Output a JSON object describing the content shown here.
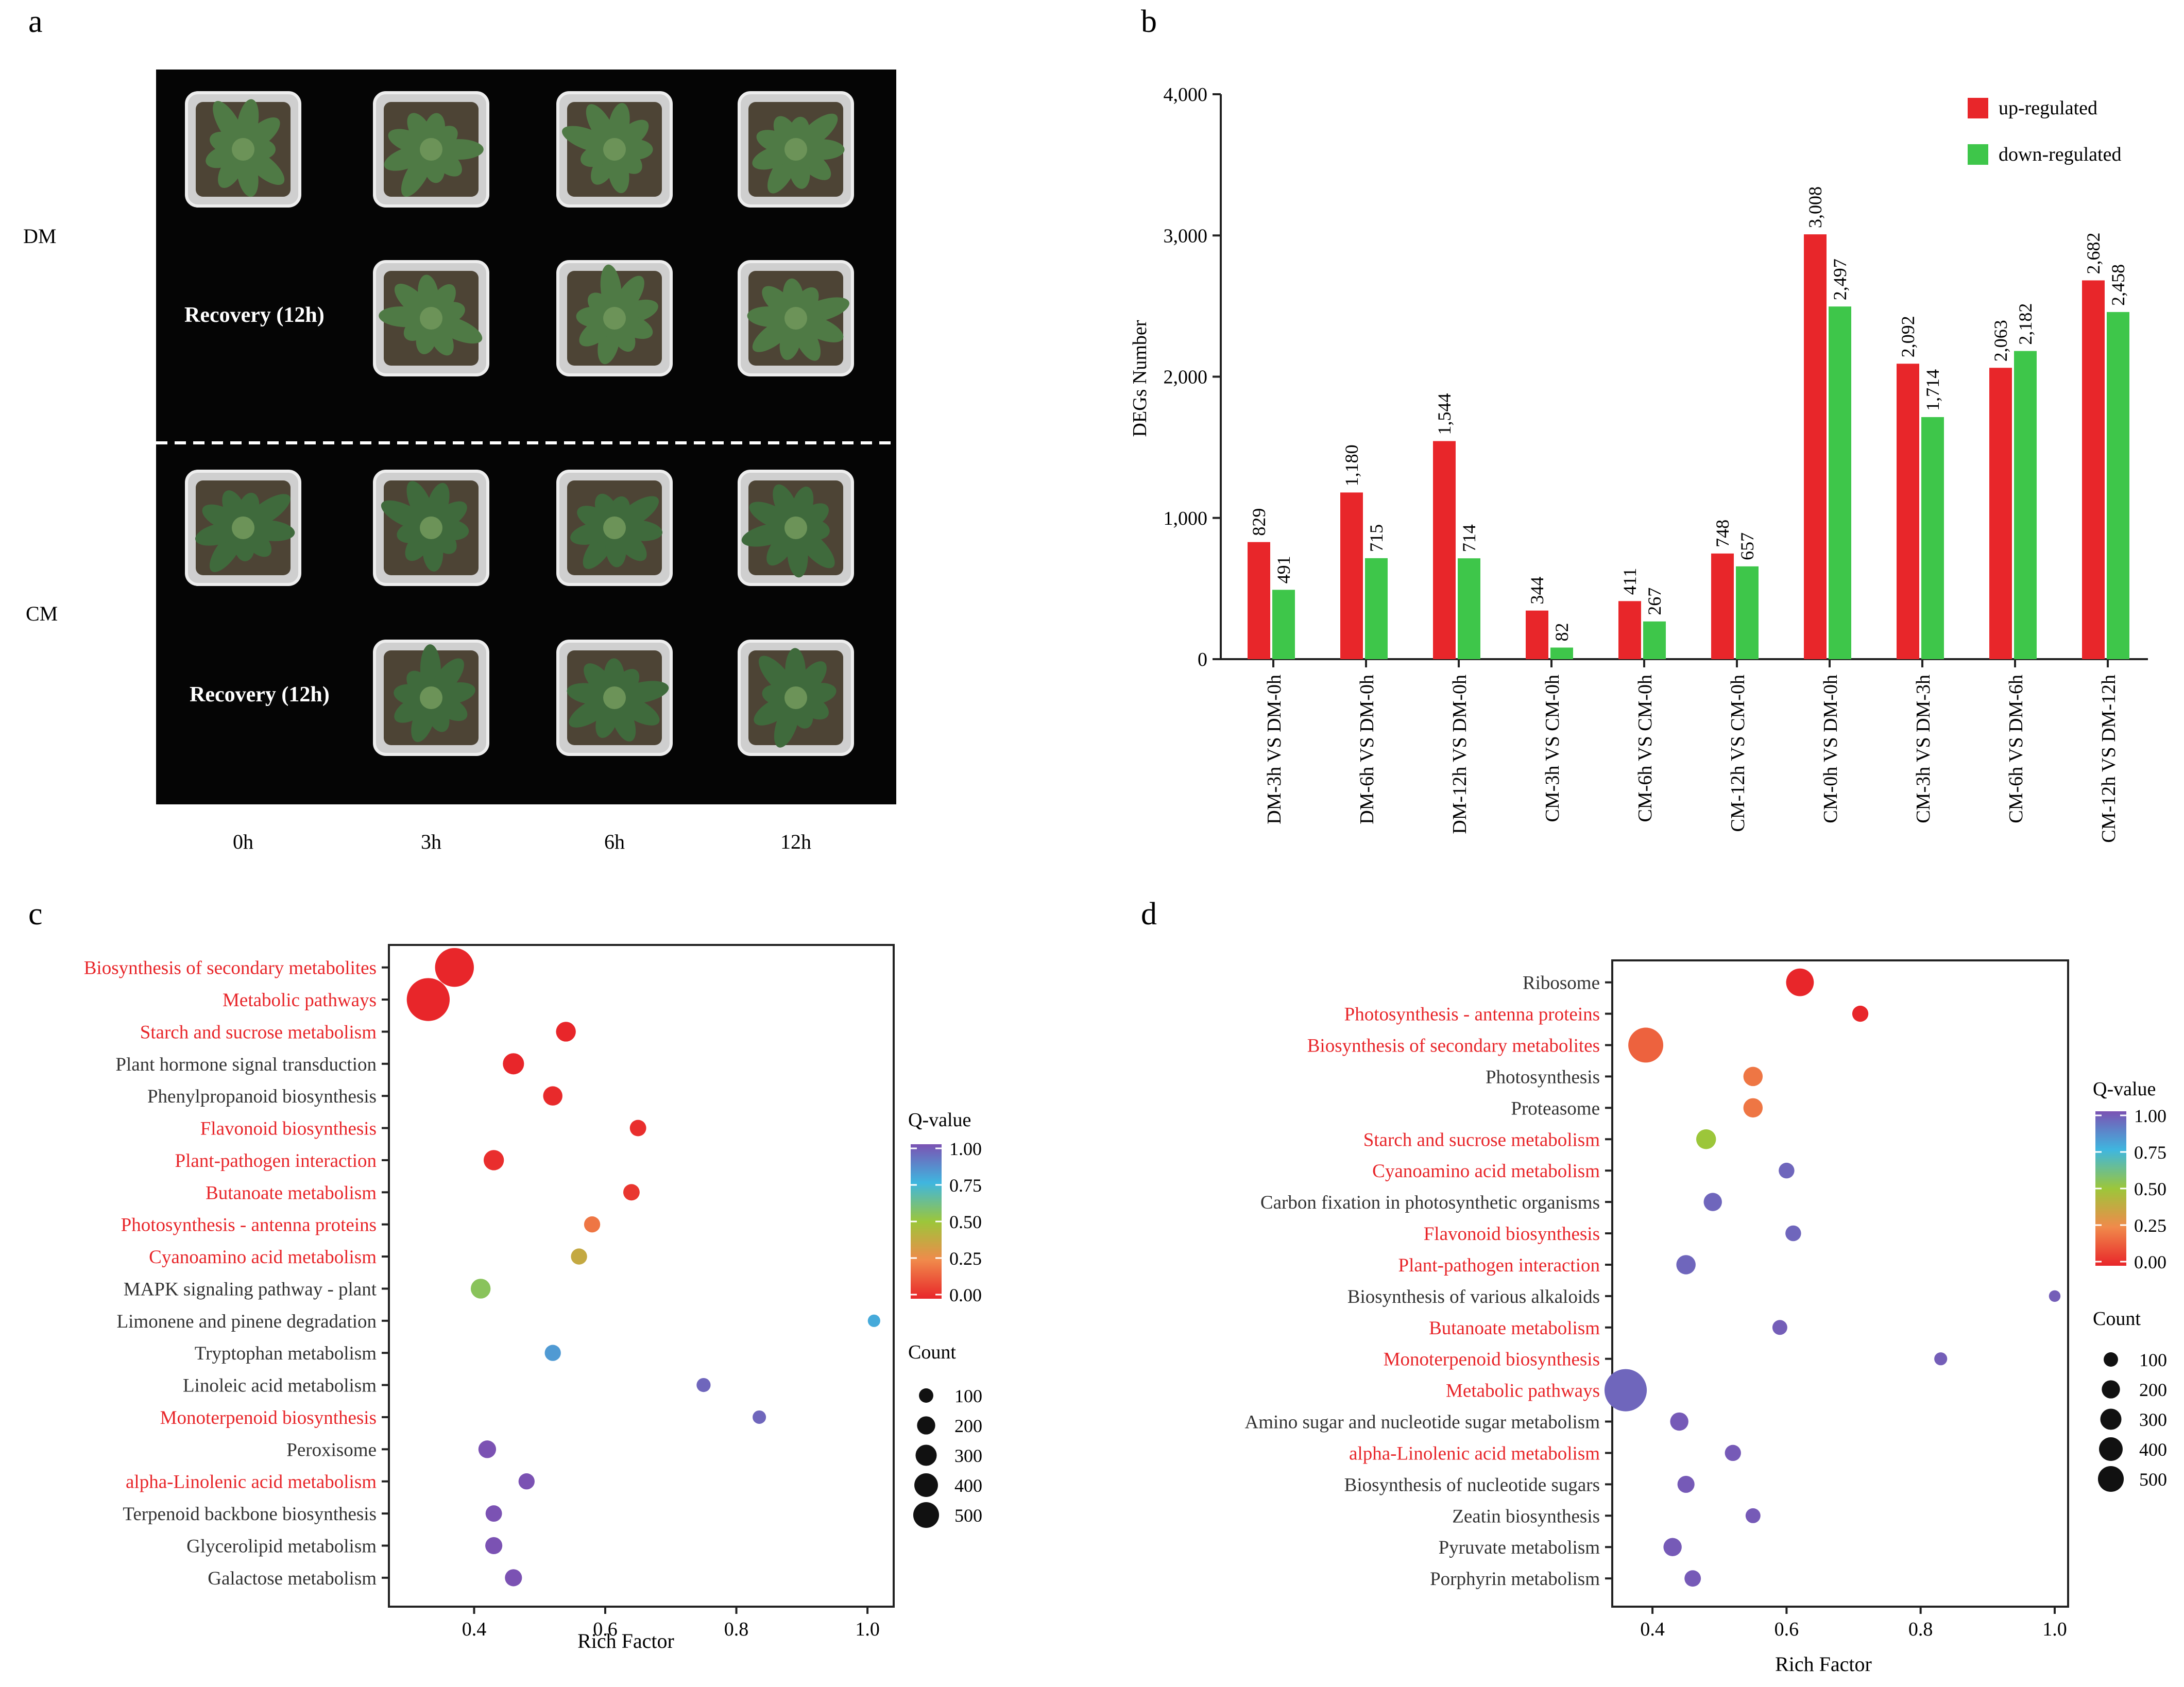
{
  "panel_labels": {
    "a": "a",
    "b": "b",
    "c": "c",
    "d": "d"
  },
  "colors": {
    "up": "#e8262a",
    "down": "#3ec64a",
    "qscale": [
      "#e8262a",
      "#f08a4b",
      "#9cc63a",
      "#3fb6df",
      "#7b52b3"
    ],
    "photo_background": "#050505",
    "highlight_text": "#e8262a",
    "normal_text": "#333333"
  },
  "photo_panel": {
    "row_labels": [
      "DM",
      "CM"
    ],
    "col_labels": [
      "0h",
      "3h",
      "6h",
      "12h"
    ],
    "recovery_labels": [
      "Recovery (12h)",
      "Recovery (12h)"
    ]
  },
  "chart_data": [
    {
      "type": "bar",
      "panel": "b",
      "ylabel": "DEGs Number",
      "ylim": [
        0,
        4000
      ],
      "yticks": [
        0,
        1000,
        2000,
        3000,
        4000
      ],
      "ytick_labels": [
        "0",
        "1,000",
        "2,000",
        "3,000",
        "4,000"
      ],
      "legend_position": "top-right",
      "categories": [
        "DM-3h VS DM-0h",
        "DM-6h VS DM-0h",
        "DM-12h VS DM-0h",
        "CM-3h VS CM-0h",
        "CM-6h VS CM-0h",
        "CM-12h VS CM-0h",
        "CM-0h VS DM-0h",
        "CM-3h VS DM-3h",
        "CM-6h VS DM-6h",
        "CM-12h VS DM-12h"
      ],
      "series": [
        {
          "name": "up-regulated",
          "values": [
            829,
            1180,
            1544,
            344,
            411,
            748,
            3008,
            2092,
            2063,
            2682
          ],
          "labels": [
            "829",
            "1,180",
            "1,544",
            "344",
            "411",
            "748",
            "3,008",
            "2,092",
            "2,063",
            "2,682"
          ]
        },
        {
          "name": "down-regulated",
          "values": [
            491,
            715,
            714,
            82,
            267,
            657,
            2497,
            1714,
            2182,
            2458
          ],
          "labels": [
            "491",
            "715",
            "714",
            "82",
            "267",
            "657",
            "2,497",
            "1,714",
            "2,182",
            "2,458"
          ]
        }
      ]
    },
    {
      "type": "scatter",
      "panel": "c",
      "xlabel": "Rich Factor",
      "xlim": [
        0.27,
        1.04
      ],
      "xticks": [
        0.4,
        0.6,
        0.8,
        1.0
      ],
      "xtick_labels": [
        "0.4",
        "0.6",
        "0.8",
        "1.0"
      ],
      "legend_q_title": "Q-value",
      "legend_q_ticks": [
        "1.00",
        "0.75",
        "0.50",
        "0.25",
        "0.00"
      ],
      "legend_count_title": "Count",
      "legend_count_values": [
        100,
        200,
        300,
        400,
        500
      ],
      "pathways": [
        {
          "name": "Biosynthesis of secondary metabolites",
          "highlight": true,
          "rich_factor": 0.37,
          "q": 0.0,
          "count": 420
        },
        {
          "name": "Metabolic pathways",
          "highlight": true,
          "rich_factor": 0.33,
          "q": 0.0,
          "count": 540
        },
        {
          "name": "Starch and sucrose metabolism",
          "highlight": true,
          "rich_factor": 0.54,
          "q": 0.0,
          "count": 60
        },
        {
          "name": "Plant hormone signal transduction",
          "highlight": false,
          "rich_factor": 0.46,
          "q": 0.0,
          "count": 75
        },
        {
          "name": "Phenylpropanoid biosynthesis",
          "highlight": false,
          "rich_factor": 0.52,
          "q": 0.01,
          "count": 55
        },
        {
          "name": "Flavonoid biosynthesis",
          "highlight": true,
          "rich_factor": 0.65,
          "q": 0.02,
          "count": 30
        },
        {
          "name": "Plant-pathogen interaction",
          "highlight": true,
          "rich_factor": 0.43,
          "q": 0.02,
          "count": 65
        },
        {
          "name": "Butanoate metabolism",
          "highlight": true,
          "rich_factor": 0.64,
          "q": 0.04,
          "count": 30
        },
        {
          "name": "Photosynthesis - antenna proteins",
          "highlight": true,
          "rich_factor": 0.58,
          "q": 0.2,
          "count": 28
        },
        {
          "name": "Cyanoamino acid metabolism",
          "highlight": true,
          "rich_factor": 0.56,
          "q": 0.38,
          "count": 28
        },
        {
          "name": "MAPK signaling pathway - plant",
          "highlight": false,
          "rich_factor": 0.41,
          "q": 0.55,
          "count": 60
        },
        {
          "name": "Limonene and pinene degradation",
          "highlight": false,
          "rich_factor": 1.01,
          "q": 0.78,
          "count": 8
        },
        {
          "name": "Tryptophan metabolism",
          "highlight": false,
          "rich_factor": 0.52,
          "q": 0.82,
          "count": 28
        },
        {
          "name": "Linoleic acid metabolism",
          "highlight": false,
          "rich_factor": 0.75,
          "q": 0.95,
          "count": 15
        },
        {
          "name": "Monoterpenoid biosynthesis",
          "highlight": true,
          "rich_factor": 0.835,
          "q": 0.95,
          "count": 12
        },
        {
          "name": "Peroxisome",
          "highlight": false,
          "rich_factor": 0.42,
          "q": 1.0,
          "count": 40
        },
        {
          "name": "alpha-Linolenic acid metabolism",
          "highlight": true,
          "rich_factor": 0.48,
          "q": 1.0,
          "count": 28
        },
        {
          "name": "Terpenoid backbone biosynthesis",
          "highlight": false,
          "rich_factor": 0.43,
          "q": 1.0,
          "count": 30
        },
        {
          "name": "Glycerolipid metabolism",
          "highlight": false,
          "rich_factor": 0.43,
          "q": 1.0,
          "count": 35
        },
        {
          "name": "Galactose metabolism",
          "highlight": false,
          "rich_factor": 0.46,
          "q": 1.0,
          "count": 35
        }
      ]
    },
    {
      "type": "scatter",
      "panel": "d",
      "xlabel": "Rich Factor",
      "xlim": [
        0.34,
        1.02
      ],
      "xticks": [
        0.4,
        0.6,
        0.8,
        1.0
      ],
      "xtick_labels": [
        "0.4",
        "0.6",
        "0.8",
        "1.0"
      ],
      "legend_q_title": "Q-value",
      "legend_q_ticks": [
        "1.00",
        "0.75",
        "0.50",
        "0.25",
        "0.00"
      ],
      "legend_count_title": "Count",
      "legend_count_values": [
        100,
        200,
        300,
        400,
        500
      ],
      "pathways": [
        {
          "name": "Ribosome",
          "highlight": false,
          "rich_factor": 0.62,
          "q": 0.0,
          "count": 170
        },
        {
          "name": "Photosynthesis - antenna proteins",
          "highlight": true,
          "rich_factor": 0.71,
          "q": 0.0,
          "count": 28
        },
        {
          "name": "Biosynthesis of secondary metabolites",
          "highlight": true,
          "rich_factor": 0.39,
          "q": 0.15,
          "count": 320
        },
        {
          "name": "Photosynthesis",
          "highlight": false,
          "rich_factor": 0.55,
          "q": 0.2,
          "count": 55
        },
        {
          "name": "Proteasome",
          "highlight": false,
          "rich_factor": 0.55,
          "q": 0.2,
          "count": 55
        },
        {
          "name": "Starch and sucrose metabolism",
          "highlight": true,
          "rich_factor": 0.48,
          "q": 0.5,
          "count": 60
        },
        {
          "name": "Cyanoamino acid metabolism",
          "highlight": true,
          "rich_factor": 0.6,
          "q": 0.95,
          "count": 25
        },
        {
          "name": "Carbon fixation in photosynthetic organisms",
          "highlight": false,
          "rich_factor": 0.49,
          "q": 0.95,
          "count": 45
        },
        {
          "name": "Flavonoid biosynthesis",
          "highlight": true,
          "rich_factor": 0.61,
          "q": 0.95,
          "count": 25
        },
        {
          "name": "Plant-pathogen interaction",
          "highlight": true,
          "rich_factor": 0.45,
          "q": 0.95,
          "count": 55
        },
        {
          "name": "Biosynthesis of various alkaloids",
          "highlight": false,
          "rich_factor": 1.0,
          "q": 0.97,
          "count": 5
        },
        {
          "name": "Butanoate metabolism",
          "highlight": true,
          "rich_factor": 0.59,
          "q": 0.97,
          "count": 20
        },
        {
          "name": "Monoterpenoid biosynthesis",
          "highlight": true,
          "rich_factor": 0.83,
          "q": 0.97,
          "count": 10
        },
        {
          "name": "Metabolic pathways",
          "highlight": true,
          "rich_factor": 0.36,
          "q": 0.95,
          "count": 520
        },
        {
          "name": "Amino sugar and nucleotide sugar metabolism",
          "highlight": false,
          "rich_factor": 0.44,
          "q": 0.98,
          "count": 45
        },
        {
          "name": "alpha-Linolenic acid metabolism",
          "highlight": true,
          "rich_factor": 0.52,
          "q": 0.98,
          "count": 28
        },
        {
          "name": "Biosynthesis of nucleotide sugars",
          "highlight": false,
          "rich_factor": 0.45,
          "q": 0.98,
          "count": 35
        },
        {
          "name": "Zeatin biosynthesis",
          "highlight": false,
          "rich_factor": 0.55,
          "q": 0.98,
          "count": 20
        },
        {
          "name": "Pyruvate metabolism",
          "highlight": false,
          "rich_factor": 0.43,
          "q": 0.98,
          "count": 45
        },
        {
          "name": "Porphyrin metabolism",
          "highlight": false,
          "rich_factor": 0.46,
          "q": 0.98,
          "count": 30
        }
      ]
    }
  ]
}
